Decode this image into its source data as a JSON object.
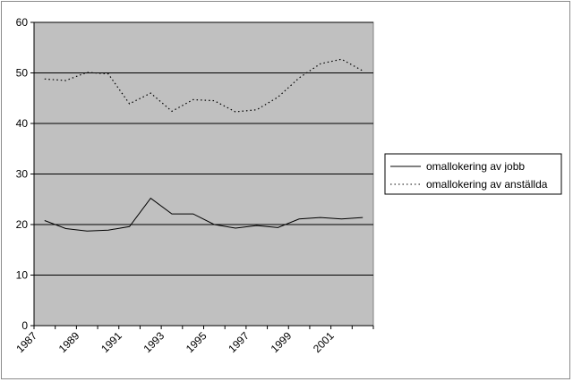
{
  "chart_data": {
    "type": "line",
    "x": [
      1987.5,
      1988.5,
      1989.5,
      1990.5,
      1991.5,
      1992.5,
      1993.5,
      1994.5,
      1995.5,
      1996.5,
      1997.5,
      1998.5,
      1999.5,
      2000.5,
      2001.5,
      2002.5
    ],
    "series": [
      {
        "name": "omallokering av jobb",
        "style": "solid",
        "color": "#000000",
        "values": [
          20.8,
          19.2,
          18.7,
          18.9,
          19.6,
          25.2,
          22.1,
          22.1,
          20.0,
          19.3,
          19.8,
          19.4,
          21.1,
          21.4,
          21.1,
          21.4
        ]
      },
      {
        "name": "omallokering av anställda",
        "style": "dotted",
        "color": "#000000",
        "values": [
          48.8,
          48.5,
          50.1,
          49.8,
          43.9,
          46.0,
          42.4,
          44.7,
          44.5,
          42.3,
          42.7,
          45.2,
          49.0,
          51.8,
          52.7,
          50.4
        ]
      }
    ],
    "xticks": [
      "1987",
      "1989",
      "1991",
      "1993",
      "1995",
      "1997",
      "1999",
      "2001"
    ],
    "xlim": [
      1987,
      2003
    ],
    "ylim": [
      0,
      60
    ],
    "yticks": [
      0,
      10,
      20,
      30,
      40,
      50,
      60
    ],
    "grid": true,
    "plot_background": "#c0c0c0",
    "legend_position": "right"
  }
}
